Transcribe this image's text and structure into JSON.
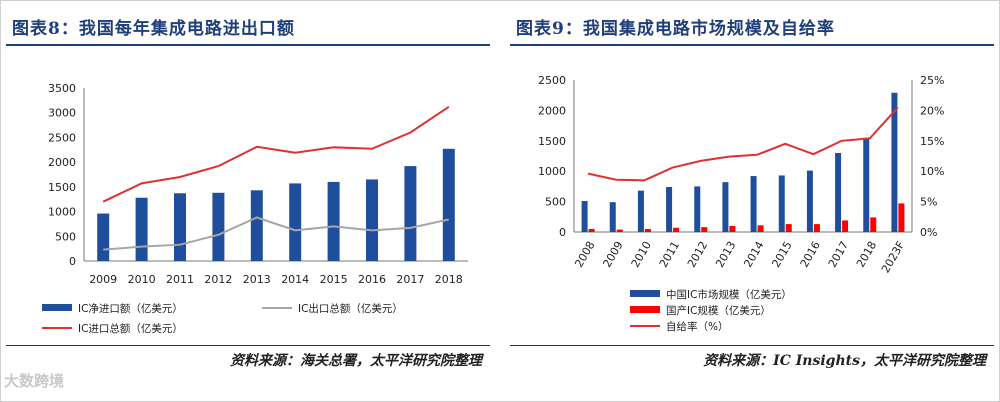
{
  "watermark": "大数跨境",
  "charts": [
    {
      "title": "图表8：我国每年集成电路进出口额",
      "source": "资料来源：海关总署，太平洋研究院整理"
    },
    {
      "title": "图表9：我国集成电路市场规模及自给率",
      "source": "资料来源：IC Insights，太平洋研究院整理"
    }
  ],
  "chart_data": [
    {
      "type": "bar",
      "categories": [
        "2009",
        "2010",
        "2011",
        "2012",
        "2013",
        "2014",
        "2015",
        "2016",
        "2017",
        "2018"
      ],
      "ylim": [
        0,
        3500
      ],
      "yticks": [
        0,
        500,
        1000,
        1500,
        2000,
        2500,
        3000,
        3500
      ],
      "series": [
        {
          "name": "IC净进口额（亿美元）",
          "type": "bar",
          "color": "#1f4e9c",
          "values": [
            960,
            1280,
            1370,
            1380,
            1430,
            1570,
            1600,
            1650,
            1920,
            2270
          ]
        },
        {
          "name": "IC出口总额（亿美元）",
          "type": "line",
          "color": "#a6a6a6",
          "values": [
            230,
            290,
            330,
            530,
            880,
            620,
            700,
            620,
            670,
            840
          ]
        },
        {
          "name": "IC进口总额（亿美元）",
          "type": "line",
          "color": "#e03030",
          "values": [
            1200,
            1570,
            1700,
            1920,
            2310,
            2190,
            2300,
            2270,
            2600,
            3120
          ]
        }
      ],
      "legend_position": "bottom"
    },
    {
      "type": "bar",
      "categories": [
        "2008",
        "2009",
        "2010",
        "2011",
        "2012",
        "2013",
        "2014",
        "2015",
        "2016",
        "2017",
        "2018",
        "2023F"
      ],
      "ylim": [
        0,
        2500
      ],
      "yticks": [
        0,
        500,
        1000,
        1500,
        2000,
        2500
      ],
      "y2lim": [
        0,
        25
      ],
      "y2ticks": [
        "0%",
        "5%",
        "10%",
        "15%",
        "20%",
        "25%"
      ],
      "series": [
        {
          "name": "中国IC市场规模（亿美元）",
          "type": "bar",
          "color": "#1f4e9c",
          "values": [
            510,
            490,
            680,
            740,
            750,
            820,
            920,
            930,
            1010,
            1300,
            1550,
            2290
          ]
        },
        {
          "name": "国产IC规模（亿美元）",
          "type": "bar",
          "color": "#ff0000",
          "values": [
            50,
            40,
            50,
            70,
            80,
            100,
            110,
            130,
            130,
            190,
            240,
            470
          ]
        },
        {
          "name": "自给率（%）",
          "type": "line",
          "axis": "right",
          "color": "#e03030",
          "values": [
            9.6,
            8.6,
            8.5,
            10.6,
            11.7,
            12.4,
            12.7,
            14.5,
            12.8,
            15.0,
            15.4,
            20.5
          ]
        }
      ],
      "legend_position": "bottom"
    }
  ]
}
